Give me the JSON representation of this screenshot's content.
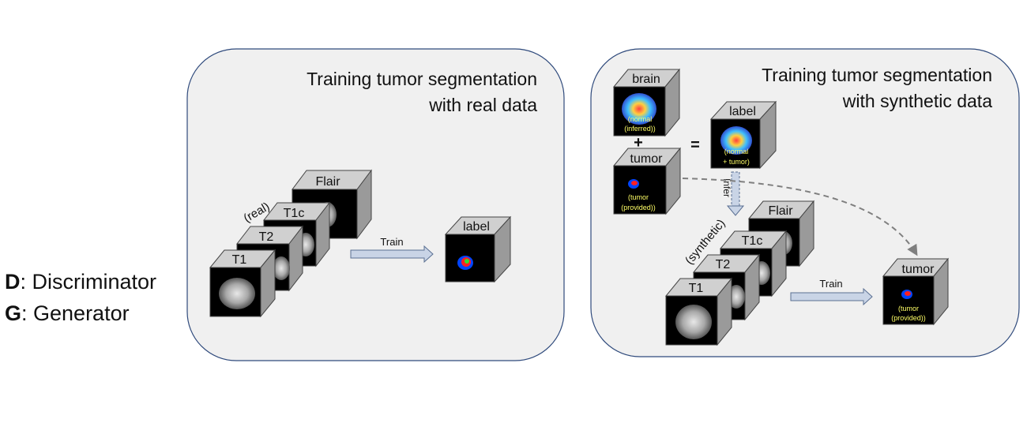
{
  "legend": {
    "d_key": "D",
    "d_text": ": Discriminator",
    "g_key": "G",
    "g_text": ": Generator"
  },
  "left_panel": {
    "title_line1": "Training tumor segmentation",
    "title_line2": "with real data",
    "stack_note": "(real)",
    "cubes": [
      "T1",
      "T2",
      "T1c",
      "Flair"
    ],
    "arrow_label": "Train",
    "output_label": "label"
  },
  "right_panel": {
    "title_line1": "Training tumor segmentation",
    "title_line2": "with synthetic data",
    "brain_label": "brain",
    "brain_caption_1": "(normal",
    "brain_caption_2": "(inferred))",
    "plus_sign": "+",
    "equals_sign": "=",
    "tumor_label": "tumor",
    "tumor_caption_1": "(tumor",
    "tumor_caption_2": "(provided))",
    "combined_label": "label",
    "combined_caption_1": "(normal",
    "combined_caption_2": "+ tumor)",
    "infer_label": "Infer",
    "stack_note": "(synthetic)",
    "cubes": [
      "T1",
      "T2",
      "T1c",
      "Flair"
    ],
    "arrow_label": "Train",
    "output_label": "tumor",
    "output_caption_1": "(tumor",
    "output_caption_2": "(provided))"
  },
  "colors": {
    "panel_fill": "#f0f0f0",
    "panel_stroke": "#2f4a7c",
    "cube_front": "#000000",
    "cube_top": "#d0d0d0",
    "cube_side": "#9a9a9a",
    "caption_yellow": "#ffff66",
    "arrow_fill": "#c9d4e6",
    "arrow_stroke": "#5a6f92",
    "dashed": "#7f7f7f"
  }
}
